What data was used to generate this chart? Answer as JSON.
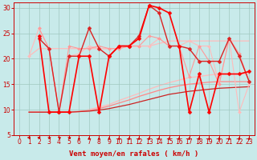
{
  "xlabel": "Vent moyen/en rafales ( km/h )",
  "bg_color": "#c8eaea",
  "grid_color": "#a0c8c0",
  "xlim": [
    -0.5,
    23.5
  ],
  "ylim": [
    5,
    31
  ],
  "yticks": [
    5,
    10,
    15,
    20,
    25,
    30
  ],
  "xticks": [
    0,
    1,
    2,
    3,
    4,
    5,
    6,
    7,
    8,
    9,
    10,
    11,
    12,
    13,
    14,
    15,
    16,
    17,
    18,
    19,
    20,
    21,
    22,
    23
  ],
  "series": [
    {
      "x": [
        1,
        2,
        3,
        4,
        5,
        6,
        7,
        8,
        9,
        10,
        11,
        12,
        13,
        14,
        15,
        16,
        17,
        18,
        19,
        20,
        21,
        22,
        23
      ],
      "y": [
        20.5,
        22.0,
        22.0,
        22.0,
        22.0,
        22.0,
        22.0,
        22.0,
        22.0,
        22.0,
        22.5,
        22.5,
        22.5,
        23.0,
        23.5,
        23.5,
        23.5,
        23.5,
        23.5,
        23.5,
        23.5,
        23.5,
        23.5
      ],
      "color": "#ffbbbb",
      "linewidth": 0.9,
      "marker": "None",
      "zorder": 1
    },
    {
      "x": [
        1,
        2,
        3,
        4,
        5,
        6,
        7,
        8,
        9,
        10,
        11,
        12,
        13,
        14,
        15,
        16,
        17,
        18,
        19,
        20,
        21,
        22,
        23
      ],
      "y": [
        9.5,
        9.5,
        9.5,
        9.5,
        9.5,
        9.7,
        10.0,
        10.5,
        11.0,
        11.8,
        12.5,
        13.2,
        14.0,
        14.7,
        15.3,
        15.8,
        16.3,
        16.5,
        16.8,
        17.0,
        17.0,
        17.0,
        17.0
      ],
      "color": "#ffbbbb",
      "linewidth": 0.9,
      "marker": "None",
      "zorder": 1
    },
    {
      "x": [
        1,
        2,
        3,
        4,
        5,
        6,
        7,
        8,
        9,
        10,
        11,
        12,
        13,
        14,
        15,
        16,
        17,
        18,
        19,
        20,
        21,
        22,
        23
      ],
      "y": [
        9.5,
        9.5,
        9.5,
        9.5,
        9.5,
        9.6,
        9.8,
        10.2,
        10.7,
        11.3,
        11.9,
        12.6,
        13.2,
        13.8,
        14.3,
        14.7,
        15.0,
        15.2,
        15.4,
        15.5,
        15.5,
        15.5,
        15.5
      ],
      "color": "#ff8888",
      "linewidth": 0.9,
      "marker": "None",
      "zorder": 2
    },
    {
      "x": [
        1,
        2,
        3,
        4,
        5,
        6,
        7,
        8,
        9,
        10,
        11,
        12,
        13,
        14,
        15,
        16,
        17,
        18,
        19,
        20,
        21,
        22,
        23
      ],
      "y": [
        9.5,
        9.5,
        9.5,
        9.5,
        9.5,
        9.6,
        9.7,
        9.9,
        10.2,
        10.6,
        11.0,
        11.5,
        12.0,
        12.5,
        13.0,
        13.3,
        13.6,
        13.8,
        14.0,
        14.2,
        14.3,
        14.4,
        14.5
      ],
      "color": "#cc2222",
      "linewidth": 0.9,
      "marker": "None",
      "zorder": 2
    },
    {
      "x": [
        1,
        2,
        3,
        4,
        5,
        6,
        7,
        8,
        9,
        10,
        11,
        12,
        13,
        14,
        15,
        16,
        17,
        18,
        19,
        20,
        21,
        22,
        23
      ],
      "y": [
        20.5,
        26.0,
        22.0,
        9.5,
        20.5,
        21.0,
        22.5,
        22.0,
        22.0,
        22.0,
        22.5,
        22.5,
        22.5,
        24.0,
        22.5,
        22.5,
        23.5,
        22.5,
        22.5,
        15.0,
        24.0,
        9.5,
        15.0
      ],
      "color": "#ffbbbb",
      "linewidth": 0.8,
      "marker": "D",
      "markersize": 2.0,
      "zorder": 3
    },
    {
      "x": [
        2,
        3,
        4,
        5,
        6,
        7,
        8,
        9,
        10,
        11,
        12,
        13,
        14,
        15,
        16,
        17,
        18,
        19,
        20,
        21,
        22,
        23
      ],
      "y": [
        26.0,
        22.0,
        9.5,
        22.5,
        22.0,
        22.0,
        22.5,
        22.0,
        22.0,
        22.5,
        22.5,
        24.5,
        24.0,
        22.5,
        22.5,
        16.5,
        22.5,
        19.5,
        15.0,
        24.0,
        21.0,
        15.5
      ],
      "color": "#ff9999",
      "linewidth": 0.8,
      "marker": "D",
      "markersize": 2.0,
      "zorder": 3
    },
    {
      "x": [
        2,
        3,
        4,
        5,
        6,
        7,
        8,
        9,
        10,
        11,
        12,
        13,
        14,
        15,
        16,
        17,
        18,
        19,
        20,
        21,
        22,
        23
      ],
      "y": [
        24.0,
        22.0,
        9.5,
        20.5,
        20.5,
        26.0,
        22.0,
        20.5,
        22.5,
        22.5,
        24.5,
        30.5,
        29.0,
        22.5,
        22.5,
        22.0,
        19.5,
        19.5,
        19.5,
        24.0,
        20.5,
        15.5
      ],
      "color": "#dd2222",
      "linewidth": 1.0,
      "marker": "D",
      "markersize": 2.5,
      "zorder": 4
    },
    {
      "x": [
        2,
        3,
        4,
        5,
        6,
        7,
        8,
        9,
        10,
        11,
        12,
        13,
        14,
        15,
        16,
        17,
        18,
        19,
        20,
        21,
        22,
        23
      ],
      "y": [
        24.5,
        9.5,
        9.5,
        9.5,
        20.5,
        20.5,
        9.5,
        20.5,
        22.5,
        22.5,
        24.0,
        30.5,
        30.0,
        29.0,
        22.5,
        9.5,
        17.0,
        9.5,
        17.0,
        17.0,
        17.0,
        17.5
      ],
      "color": "#ff0000",
      "linewidth": 1.2,
      "marker": "D",
      "markersize": 2.5,
      "zorder": 5
    }
  ],
  "wind_arrows": {
    "x": [
      1,
      2,
      3,
      4,
      5,
      6,
      7,
      8,
      9,
      10,
      11,
      12,
      13,
      14,
      15,
      16,
      17,
      18,
      19,
      20,
      21,
      22,
      23
    ],
    "angles": [
      270,
      270,
      315,
      315,
      315,
      0,
      0,
      0,
      0,
      0,
      0,
      0,
      0,
      0,
      0,
      0,
      0,
      0,
      0,
      0,
      0,
      0,
      0
    ]
  }
}
